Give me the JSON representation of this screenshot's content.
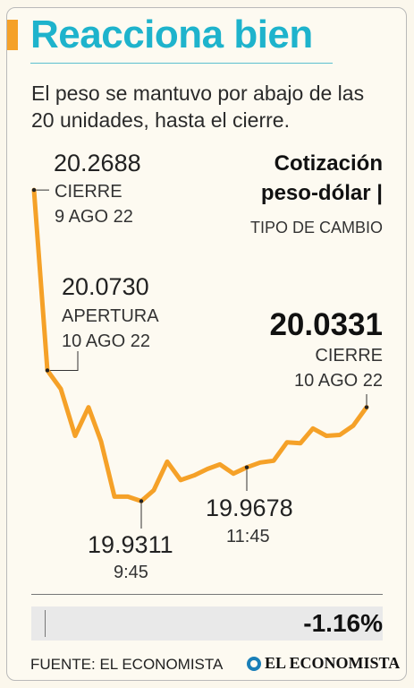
{
  "header": {
    "title": "Reacciona bien",
    "subtitle": "El peso se mantuvo por abajo de las 20 unidades, hasta el cierre."
  },
  "legend": {
    "line1": "Cotización",
    "line2": "peso-dólar |",
    "line3": "TIPO DE CAMBIO"
  },
  "annotations": {
    "prev_close_value": "20.2688",
    "prev_close_label": "CIERRE",
    "prev_close_date": "9 AGO 22",
    "open_value": "20.0730",
    "open_label": "APERTURA",
    "open_date": "10 AGO 22",
    "close_value": "20.0331",
    "close_label": "CIERRE",
    "close_date": "10 AGO 22",
    "low_value": "19.9311",
    "low_time": "9:45",
    "mid_value": "19.9678",
    "mid_time": "11:45"
  },
  "footer": {
    "change": "-1.16%",
    "source": "FUENTE: EL ECONOMISTA",
    "brand": "EL ECONOMISTA"
  },
  "colors": {
    "title": "#1eb3cc",
    "line": "#f5a128",
    "accent_bar": "#f5a128"
  },
  "chart_data": {
    "type": "line",
    "title": "Cotización peso-dólar",
    "ylabel": "",
    "xlabel": "",
    "grid": false,
    "series": [
      {
        "name": "Tipo de cambio",
        "values": [
          20.2688,
          20.073,
          20.053,
          20.002,
          20.033,
          19.996,
          19.936,
          19.936,
          19.9311,
          19.943,
          19.974,
          19.954,
          19.959,
          19.966,
          19.971,
          19.961,
          19.9678,
          19.973,
          19.975,
          19.995,
          19.994,
          20.01,
          20.002,
          20.003,
          20.013,
          20.0331
        ]
      }
    ],
    "ylim": [
      19.88,
      20.3
    ]
  }
}
